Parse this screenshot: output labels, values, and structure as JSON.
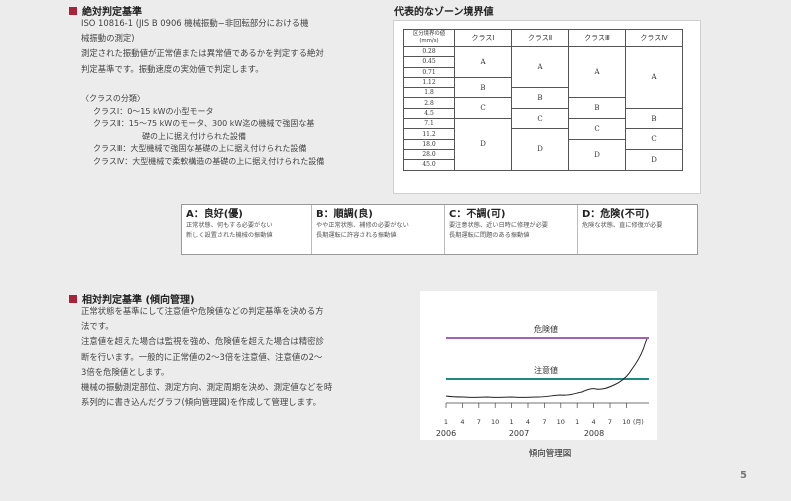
{
  "absolute": {
    "heading": "絶対判定基準",
    "lines": [
      "ISO 10816-1 (JIS B 0906 機械振動−非回転部分における機",
      "械振動の測定)",
      "測定された振動値が正常値または異常値であるかを判定する絶対",
      "判定基準です。振動速度の実効値で判定します。"
    ],
    "classes_heading": "〈クラスの分類〉",
    "classes": [
      "クラスⅠ：0〜15 kWの小型モータ",
      "クラスⅡ：15〜75 kWのモータ、300 kW迄の機械で強固な基",
      "礎の上に据え付けられた設備",
      "クラスⅢ：大型機械で強固な基礎の上に据え付けられた設備",
      "クラスⅣ：大型機械で柔軟構造の基礎の上に据え付けられた設備"
    ]
  },
  "zone": {
    "title": "代表的なゾーン境界値",
    "header_label": "区分境界の値(mm/s)",
    "columns": [
      "クラスⅠ",
      "クラスⅡ",
      "クラスⅢ",
      "クラスⅣ"
    ],
    "values": [
      "0.28",
      "0.45",
      "0.71",
      "1.12",
      "1.8",
      "2.8",
      "4.5",
      "7.1",
      "11.2",
      "18.0",
      "28.0",
      "45.0"
    ],
    "class_zones": [
      [
        "A",
        "B",
        "C",
        "D"
      ],
      [
        "A",
        "B",
        "C",
        "D"
      ],
      [
        "A",
        "B",
        "C",
        "D"
      ],
      [
        "A",
        "B",
        "C",
        "D"
      ]
    ]
  },
  "grades": [
    {
      "title": "A：良好(優)",
      "desc1": "正常状態、何もする必要がない",
      "desc2": "新しく設置された機械の振動値"
    },
    {
      "title": "B：順調(良)",
      "desc1": "やや正常状態、補修の必要がない",
      "desc2": "長期運転に許容される振動値"
    },
    {
      "title": "C：不調(可)",
      "desc1": "要注意状態、近い日時に修理が必要",
      "desc2": "長期運転に問題のある振動値"
    },
    {
      "title": "D：危険(不可)",
      "desc1": "危険な状態、直に修復が必要",
      "desc2": ""
    }
  ],
  "relative": {
    "heading": "相対判定基準 (傾向管理)",
    "lines": [
      "正常状態を基準にして注意値や危険値などの判定基準を決める方",
      "法です。",
      "注意値を超えた場合は監視を強め、危険値を超えた場合は精密診",
      "断を行います。一般的に正常値の2〜3倍を注意値、注意値の2〜",
      "3倍を危険値とします。",
      "機械の振動測定部位、測定方向、測定周期を決め、測定値などを時",
      "系列的に書き込んだグラフ(傾向管理図)を作成して管理します。"
    ]
  },
  "trend": {
    "danger_label": "危険値",
    "caution_label": "注意値",
    "danger_color": "#a463b0",
    "caution_color": "#1f8a84",
    "months": [
      "1",
      "4",
      "7",
      "10",
      "1",
      "4",
      "7",
      "10",
      "1",
      "4",
      "7",
      "10"
    ],
    "unit": "(月)",
    "years": [
      "2006",
      "2007",
      "2008"
    ],
    "caption": "傾向管理図"
  },
  "page_number": "5"
}
